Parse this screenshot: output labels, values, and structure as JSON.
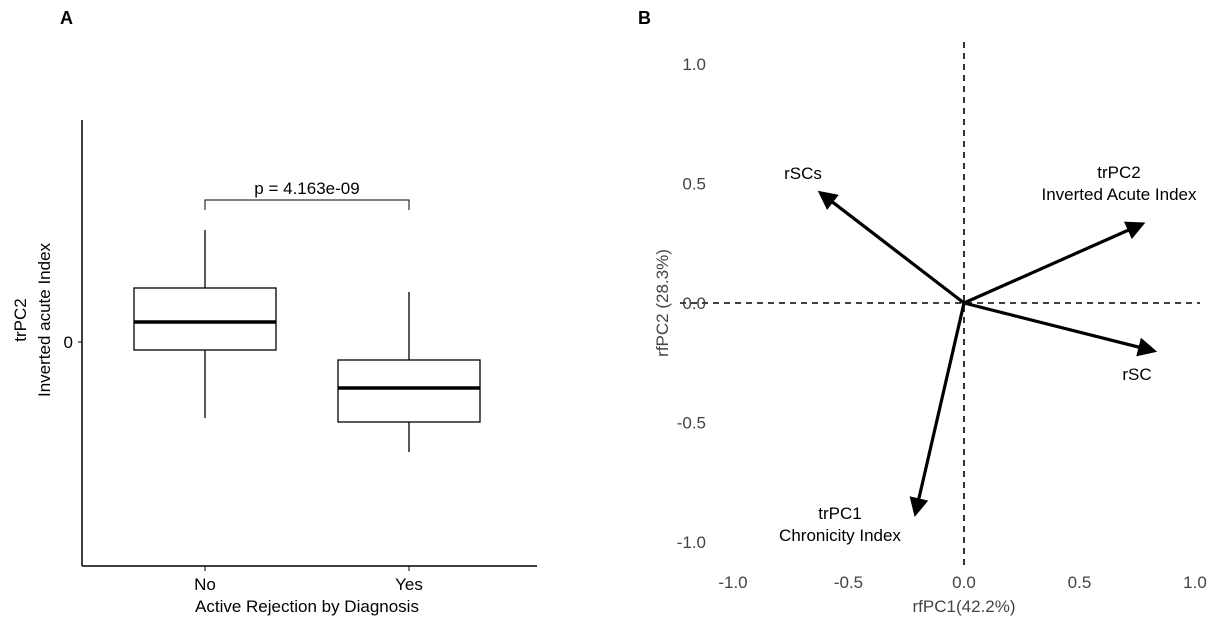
{
  "panels": {
    "a_label": "A",
    "b_label": "B"
  },
  "chart_data": [
    {
      "type": "box",
      "categories": [
        "No",
        "Yes"
      ],
      "boxes": [
        {
          "category": "No",
          "whisker_low": -0.38,
          "q1": -0.04,
          "median": 0.1,
          "q3": 0.27,
          "whisker_high": 0.56
        },
        {
          "category": "Yes",
          "whisker_low": -0.55,
          "q1": -0.4,
          "median": -0.23,
          "q3": -0.09,
          "whisker_high": 0.25
        }
      ],
      "y_ticks": [
        "0"
      ],
      "ylim": [
        -1.0,
        1.0
      ],
      "xlabel": "Active Rejection by Diagnosis",
      "ylabel_line1": "trPC2",
      "ylabel_line2": "Inverted acute Index",
      "annotation": "p = 4.163e-09"
    },
    {
      "type": "biplot",
      "xlabel": "rfPC1(42.2%)",
      "ylabel": "rfPC2 (28.3%)",
      "xlim": [
        -1.0,
        1.0
      ],
      "ylim": [
        -1.0,
        1.0
      ],
      "x_ticks": [
        "-1.0",
        "-0.5",
        "0.0",
        "0.5",
        "1.0"
      ],
      "y_ticks": [
        "1.0",
        "0.5",
        "0.0",
        "-0.5",
        "-1.0"
      ],
      "reference_lines": "dashed at x=0 and y=0",
      "vectors": [
        {
          "x": -0.62,
          "y": 0.46,
          "label_lines": [
            "rSCs"
          ]
        },
        {
          "x": 0.77,
          "y": 0.33,
          "label_lines": [
            "trPC2",
            "Inverted Acute Index"
          ]
        },
        {
          "x": 0.82,
          "y": -0.2,
          "label_lines": [
            "rSC"
          ]
        },
        {
          "x": -0.21,
          "y": -0.88,
          "label_lines": [
            "trPC1",
            "Chronicity Index"
          ]
        }
      ]
    }
  ]
}
